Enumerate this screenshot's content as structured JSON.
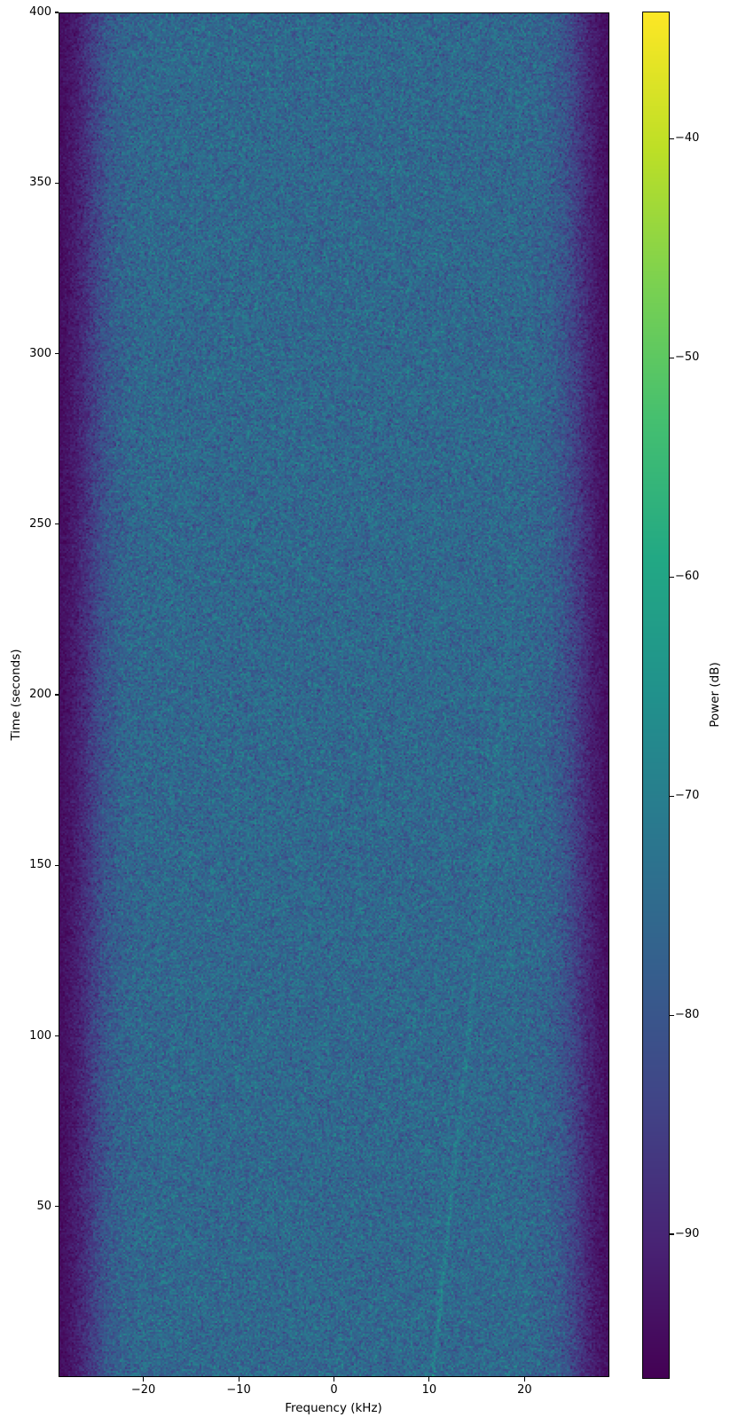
{
  "figure": {
    "background_color": "#ffffff",
    "text_color": "#000000"
  },
  "chart_data": {
    "type": "heatmap",
    "subtype": "spectrogram",
    "title": "",
    "xlabel": "Frequency (kHz)",
    "ylabel": "Time (seconds)",
    "colorbar_label": "Power (dB)",
    "x_range_khz": [
      -28.9,
      28.9
    ],
    "x_tick_values": [
      -20,
      -10,
      0,
      10,
      20
    ],
    "x_tick_labels": [
      "−20",
      "−10",
      "0",
      "10",
      "20"
    ],
    "y_range_s": [
      0,
      400
    ],
    "y_tick_values": [
      50,
      100,
      150,
      200,
      250,
      300,
      350,
      400
    ],
    "y_tick_labels": [
      "50",
      "100",
      "150",
      "200",
      "250",
      "300",
      "350",
      "400"
    ],
    "colorbar_tick_values": [
      -40,
      -50,
      -60,
      -70,
      -80,
      -90
    ],
    "colorbar_tick_labels": [
      "−40",
      "−50",
      "−60",
      "−70",
      "−80",
      "−90"
    ],
    "color_range_db": [
      -96.6,
      -34.2
    ],
    "colormap": "viridis",
    "colormap_stops": [
      "#440154",
      "#482475",
      "#414487",
      "#355f8d",
      "#2a788e",
      "#21918c",
      "#22a884",
      "#44bf70",
      "#7ad151",
      "#bddf26",
      "#fde725"
    ],
    "grid": false,
    "legend": null,
    "signal_model": {
      "passband_half_width_khz": 25.6,
      "edge_softness_khz": 1.3,
      "passband_power_db": -75.5,
      "noise_floor_db": -95.8,
      "passband_noise_std_db": 3.8,
      "floor_noise_std_db": 0.9,
      "transition_extra_std_db": 2.0
    },
    "faint_trace": {
      "present": true,
      "start_khz": 10.3,
      "drift_khz_per_s": 0.0375,
      "visible_until_s": 260,
      "peak_boost_db": 5.5,
      "width_khz": 0.18
    },
    "render_seed": 1337,
    "pixel_block": 2
  }
}
